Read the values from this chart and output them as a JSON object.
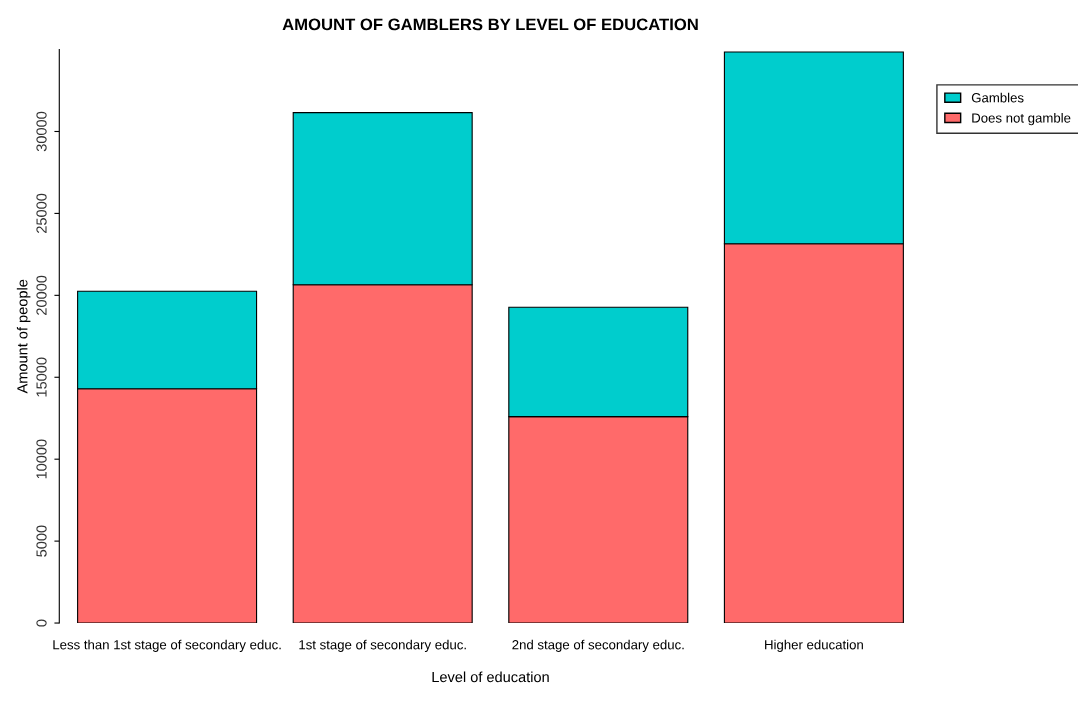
{
  "chart_data": {
    "type": "bar",
    "title": "AMOUNT OF GAMBLERS BY LEVEL OF EDUCATION",
    "xlabel": "Level of education",
    "ylabel": "Amount of people",
    "categories": [
      "Less than 1st stage of secondary educ.",
      "1st stage of secondary educ.",
      "2nd stage of secondary educ.",
      "Higher education"
    ],
    "stacked": true,
    "series": [
      {
        "name": "Does not gamble",
        "color": "#ff6a6a",
        "values": [
          14300,
          20650,
          12600,
          23150
        ]
      },
      {
        "name": "Gambles",
        "color": "#00cdcd",
        "values": [
          5950,
          10500,
          6670,
          11700
        ]
      }
    ],
    "ylim": [
      0,
      35000
    ],
    "yticks": [
      0,
      5000,
      10000,
      15000,
      20000,
      25000,
      30000
    ],
    "grid": false,
    "legend": "top right"
  }
}
